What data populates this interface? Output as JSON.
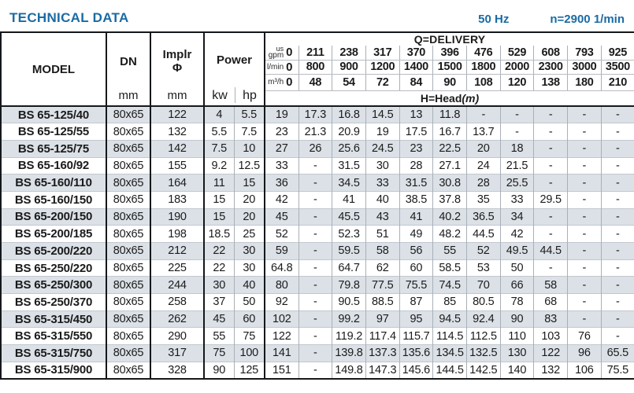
{
  "page": {
    "title": "TECHNICAL DATA",
    "frequency": "50 Hz",
    "speed": "n=2900 1/min"
  },
  "table": {
    "model_header": "MODEL",
    "dn_header": "DN",
    "implr_header_line1": "Implr",
    "implr_header_line2": "Φ",
    "power_header": "Power",
    "mm_label": "mm",
    "kw_label": "kw",
    "hp_label": "hp",
    "delivery_title": "Q=DELIVERY",
    "head_title": "H=Head",
    "head_unit": "(m)",
    "delivery_rows": [
      {
        "unit_top": "us",
        "unit": "gpm",
        "values": [
          "0",
          "211",
          "238",
          "317",
          "370",
          "396",
          "476",
          "529",
          "608",
          "793",
          "925"
        ]
      },
      {
        "unit": "l/min",
        "values": [
          "0",
          "800",
          "900",
          "1200",
          "1400",
          "1500",
          "1800",
          "2000",
          "2300",
          "3000",
          "3500"
        ]
      },
      {
        "unit": "m³/h",
        "values": [
          "0",
          "48",
          "54",
          "72",
          "84",
          "90",
          "108",
          "120",
          "138",
          "180",
          "210"
        ]
      }
    ],
    "rows": [
      {
        "model": "BS 65-125/40",
        "dn": "80x65",
        "implr": "122",
        "kw": "4",
        "hp": "5.5",
        "heads": [
          "19",
          "17.3",
          "16.8",
          "14.5",
          "13",
          "11.8",
          "-",
          "-",
          "-",
          "-",
          "-"
        ]
      },
      {
        "model": "BS 65-125/55",
        "dn": "80x65",
        "implr": "132",
        "kw": "5.5",
        "hp": "7.5",
        "heads": [
          "23",
          "21.3",
          "20.9",
          "19",
          "17.5",
          "16.7",
          "13.7",
          "-",
          "-",
          "-",
          "-"
        ]
      },
      {
        "model": "BS 65-125/75",
        "dn": "80x65",
        "implr": "142",
        "kw": "7.5",
        "hp": "10",
        "heads": [
          "27",
          "26",
          "25.6",
          "24.5",
          "23",
          "22.5",
          "20",
          "18",
          "-",
          "-",
          "-"
        ]
      },
      {
        "model": "BS 65-160/92",
        "dn": "80x65",
        "implr": "155",
        "kw": "9.2",
        "hp": "12.5",
        "heads": [
          "33",
          "-",
          "31.5",
          "30",
          "28",
          "27.1",
          "24",
          "21.5",
          "-",
          "-",
          "-"
        ]
      },
      {
        "model": "BS 65-160/110",
        "dn": "80x65",
        "implr": "164",
        "kw": "11",
        "hp": "15",
        "heads": [
          "36",
          "-",
          "34.5",
          "33",
          "31.5",
          "30.8",
          "28",
          "25.5",
          "-",
          "-",
          "-"
        ]
      },
      {
        "model": "BS 65-160/150",
        "dn": "80x65",
        "implr": "183",
        "kw": "15",
        "hp": "20",
        "heads": [
          "42",
          "-",
          "41",
          "40",
          "38.5",
          "37.8",
          "35",
          "33",
          "29.5",
          "-",
          "-"
        ]
      },
      {
        "model": "BS 65-200/150",
        "dn": "80x65",
        "implr": "190",
        "kw": "15",
        "hp": "20",
        "heads": [
          "45",
          "-",
          "45.5",
          "43",
          "41",
          "40.2",
          "36.5",
          "34",
          "-",
          "-",
          "-"
        ]
      },
      {
        "model": "BS 65-200/185",
        "dn": "80x65",
        "implr": "198",
        "kw": "18.5",
        "hp": "25",
        "heads": [
          "52",
          "-",
          "52.3",
          "51",
          "49",
          "48.2",
          "44.5",
          "42",
          "-",
          "-",
          "-"
        ]
      },
      {
        "model": "BS 65-200/220",
        "dn": "80x65",
        "implr": "212",
        "kw": "22",
        "hp": "30",
        "heads": [
          "59",
          "-",
          "59.5",
          "58",
          "56",
          "55",
          "52",
          "49.5",
          "44.5",
          "-",
          "-"
        ]
      },
      {
        "model": "BS 65-250/220",
        "dn": "80x65",
        "implr": "225",
        "kw": "22",
        "hp": "30",
        "heads": [
          "64.8",
          "-",
          "64.7",
          "62",
          "60",
          "58.5",
          "53",
          "50",
          "-",
          "-",
          "-"
        ]
      },
      {
        "model": "BS 65-250/300",
        "dn": "80x65",
        "implr": "244",
        "kw": "30",
        "hp": "40",
        "heads": [
          "80",
          "-",
          "79.8",
          "77.5",
          "75.5",
          "74.5",
          "70",
          "66",
          "58",
          "-",
          "-"
        ]
      },
      {
        "model": "BS 65-250/370",
        "dn": "80x65",
        "implr": "258",
        "kw": "37",
        "hp": "50",
        "heads": [
          "92",
          "-",
          "90.5",
          "88.5",
          "87",
          "85",
          "80.5",
          "78",
          "68",
          "-",
          "-"
        ]
      },
      {
        "model": "BS 65-315/450",
        "dn": "80x65",
        "implr": "262",
        "kw": "45",
        "hp": "60",
        "heads": [
          "102",
          "-",
          "99.2",
          "97",
          "95",
          "94.5",
          "92.4",
          "90",
          "83",
          "-",
          "-"
        ]
      },
      {
        "model": "BS 65-315/550",
        "dn": "80x65",
        "implr": "290",
        "kw": "55",
        "hp": "75",
        "heads": [
          "122",
          "-",
          "119.2",
          "117.4",
          "115.7",
          "114.5",
          "112.5",
          "110",
          "103",
          "76",
          "-"
        ]
      },
      {
        "model": "BS 65-315/750",
        "dn": "80x65",
        "implr": "317",
        "kw": "75",
        "hp": "100",
        "heads": [
          "141",
          "-",
          "139.8",
          "137.3",
          "135.6",
          "134.5",
          "132.5",
          "130",
          "122",
          "96",
          "65.5"
        ]
      },
      {
        "model": "BS 65-315/900",
        "dn": "80x65",
        "implr": "328",
        "kw": "90",
        "hp": "125",
        "heads": [
          "151",
          "-",
          "149.8",
          "147.3",
          "145.6",
          "144.5",
          "142.5",
          "140",
          "132",
          "106",
          "75.5"
        ]
      }
    ]
  }
}
